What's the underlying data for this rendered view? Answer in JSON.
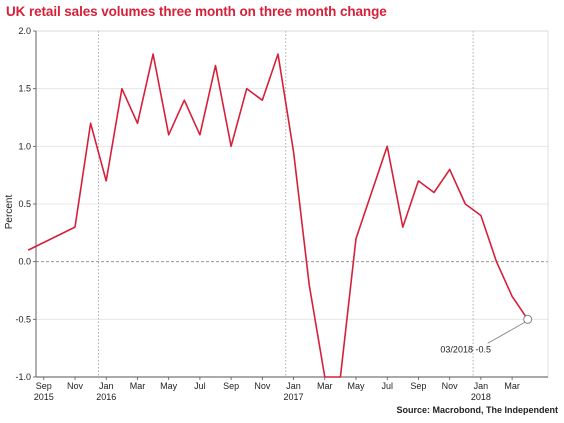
{
  "chart_data": {
    "type": "line",
    "title": "UK retail sales volumes three month on three month change",
    "ylabel": "Percent",
    "xlabel": "",
    "ylim": [
      -1.0,
      2.0
    ],
    "yticks": [
      "2.0",
      "1.5",
      "1.0",
      "0.5",
      "0.0",
      "-0.5",
      "-1.0"
    ],
    "x_ticks": [
      {
        "month": "Sep",
        "year": "2015"
      },
      {
        "month": "Nov",
        "year": ""
      },
      {
        "month": "Jan",
        "year": "2016"
      },
      {
        "month": "Mar",
        "year": ""
      },
      {
        "month": "May",
        "year": ""
      },
      {
        "month": "Jul",
        "year": ""
      },
      {
        "month": "Sep",
        "year": ""
      },
      {
        "month": "Nov",
        "year": ""
      },
      {
        "month": "Jan",
        "year": "2017"
      },
      {
        "month": "Mar",
        "year": ""
      },
      {
        "month": "May",
        "year": ""
      },
      {
        "month": "Jul",
        "year": ""
      },
      {
        "month": "Sep",
        "year": ""
      },
      {
        "month": "Nov",
        "year": ""
      },
      {
        "month": "Jan",
        "year": "2018"
      },
      {
        "month": "Mar",
        "year": ""
      }
    ],
    "series": [
      {
        "color": "#d6203a",
        "points": [
          {
            "x": "2015-08",
            "y": 0.1
          },
          {
            "x": "2015-11",
            "y": 0.3
          },
          {
            "x": "2015-12",
            "y": 1.2
          },
          {
            "x": "2016-01",
            "y": 0.7
          },
          {
            "x": "2016-02",
            "y": 1.5
          },
          {
            "x": "2016-03",
            "y": 1.2
          },
          {
            "x": "2016-04",
            "y": 1.8
          },
          {
            "x": "2016-05",
            "y": 1.1
          },
          {
            "x": "2016-06",
            "y": 1.4
          },
          {
            "x": "2016-07",
            "y": 1.1
          },
          {
            "x": "2016-08",
            "y": 1.7
          },
          {
            "x": "2016-09",
            "y": 1.0
          },
          {
            "x": "2016-10",
            "y": 1.5
          },
          {
            "x": "2016-11",
            "y": 1.4
          },
          {
            "x": "2016-12",
            "y": 1.8
          },
          {
            "x": "2017-01",
            "y": 0.95
          },
          {
            "x": "2017-02",
            "y": -0.2
          },
          {
            "x": "2017-03",
            "y": -1.0
          },
          {
            "x": "2017-04",
            "y": -1.0
          },
          {
            "x": "2017-05",
            "y": 0.2
          },
          {
            "x": "2017-07",
            "y": 1.0
          },
          {
            "x": "2017-08",
            "y": 0.3
          },
          {
            "x": "2017-09",
            "y": 0.7
          },
          {
            "x": "2017-10",
            "y": 0.6
          },
          {
            "x": "2017-11",
            "y": 0.8
          },
          {
            "x": "2017-12",
            "y": 0.5
          },
          {
            "x": "2018-01",
            "y": 0.4
          },
          {
            "x": "2018-02",
            "y": 0.0
          },
          {
            "x": "2018-03",
            "y": -0.3
          },
          {
            "x": "2018-04",
            "y": -0.5
          }
        ]
      }
    ],
    "annotation": {
      "text": "03/2018 -0.5",
      "x": "2018-04",
      "y": -0.5
    },
    "grid": true,
    "year_separators": [
      "2016-01",
      "2017-01",
      "2018-01"
    ],
    "source": "Source: Macrobond, The Independent"
  }
}
